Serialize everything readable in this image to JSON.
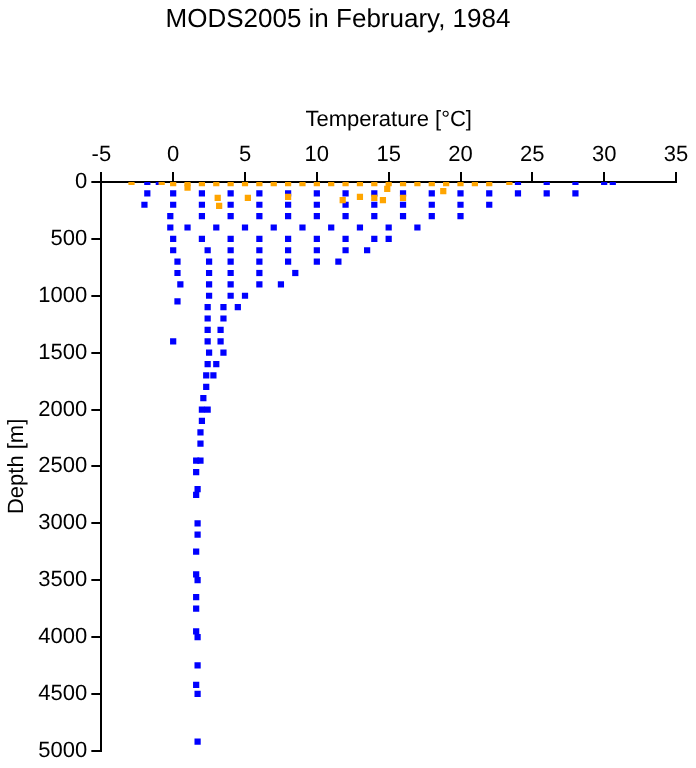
{
  "chart_data": {
    "type": "scatter",
    "title": "MODS2005 in February, 1984",
    "xlabel": "Temperature [°C]",
    "ylabel": "Depth [m]",
    "xlim": [
      -5,
      35
    ],
    "xticks": [
      -5,
      0,
      5,
      10,
      15,
      20,
      25,
      30,
      35
    ],
    "ylim": [
      5000,
      0
    ],
    "yticks": [
      0,
      500,
      1000,
      1500,
      2000,
      2500,
      3000,
      3500,
      4000,
      4500,
      5000
    ],
    "grid": false,
    "legend": false,
    "marker": "square",
    "series": [
      {
        "color": "#0000ff",
        "x": [
          -1.8,
          -1,
          24,
          26,
          28,
          30,
          30.6,
          -1.8,
          0,
          2,
          4,
          6,
          8,
          10,
          12,
          14,
          16,
          18,
          20,
          22,
          24,
          26,
          28,
          -2,
          0,
          2,
          4,
          6,
          8,
          10,
          12,
          14,
          16,
          18,
          20,
          22,
          -0.2,
          2,
          4,
          6,
          8,
          10,
          12,
          14,
          16,
          18,
          20,
          -0.2,
          1,
          3,
          5,
          7,
          9,
          11,
          13,
          15,
          17,
          0,
          2,
          4,
          6,
          8,
          10,
          12,
          14,
          15,
          0,
          2.4,
          4,
          6,
          8,
          10,
          12,
          13.5,
          0.3,
          2.5,
          4,
          6,
          8,
          10,
          11.5,
          0.3,
          2.5,
          4,
          6,
          8.5,
          0.5,
          2.5,
          4,
          6,
          7.5,
          2.5,
          4,
          5,
          0.3,
          2.4,
          3.5,
          4.5,
          2.4,
          3.5,
          2.4,
          3.3,
          0,
          2.4,
          3.3,
          2.5,
          3.5,
          2.4,
          3,
          2.3,
          2.8,
          2.3,
          2.1,
          2,
          2.4,
          2,
          1.9,
          1.9,
          1.6,
          1.9,
          1.6,
          1.7,
          1.6,
          1.7,
          1.7,
          1.6,
          1.6,
          1.7,
          1.6,
          1.6,
          1.6,
          1.7,
          1.7,
          1.6,
          1.7,
          1.7
        ],
        "values": [
          0,
          0,
          0,
          0,
          0,
          0,
          0,
          100,
          100,
          100,
          100,
          100,
          100,
          100,
          100,
          100,
          100,
          100,
          100,
          100,
          100,
          100,
          100,
          200,
          200,
          200,
          200,
          200,
          200,
          200,
          200,
          200,
          200,
          200,
          200,
          200,
          300,
          300,
          300,
          300,
          300,
          300,
          300,
          300,
          300,
          300,
          300,
          400,
          400,
          400,
          400,
          400,
          400,
          400,
          400,
          400,
          400,
          500,
          500,
          500,
          500,
          500,
          500,
          500,
          500,
          500,
          600,
          600,
          600,
          600,
          600,
          600,
          600,
          600,
          700,
          700,
          700,
          700,
          700,
          700,
          700,
          800,
          800,
          800,
          800,
          800,
          900,
          900,
          900,
          900,
          900,
          1000,
          1000,
          1000,
          1050,
          1100,
          1100,
          1100,
          1200,
          1200,
          1300,
          1300,
          1400,
          1400,
          1400,
          1500,
          1500,
          1600,
          1600,
          1700,
          1700,
          1800,
          1900,
          2000,
          2000,
          2100,
          2200,
          2300,
          2450,
          2450,
          2550,
          2700,
          2750,
          3000,
          3100,
          3250,
          3450,
          3500,
          3650,
          3750,
          3950,
          4000,
          4250,
          4420,
          4500,
          4920
        ]
      },
      {
        "color": "#ffa500",
        "x": [
          -2.9,
          -0.8,
          0,
          1,
          2,
          3,
          4,
          5,
          6,
          7,
          8,
          9,
          10,
          11,
          12,
          13,
          14,
          15,
          16,
          17,
          18,
          19,
          20,
          21,
          22,
          23.4,
          1,
          3.1,
          3.2,
          5.2,
          8,
          11.8,
          13,
          14,
          14.6,
          14.9,
          16,
          18.8
        ],
        "values": [
          0,
          0,
          10,
          10,
          10,
          10,
          10,
          10,
          10,
          10,
          10,
          10,
          10,
          10,
          10,
          10,
          10,
          10,
          10,
          10,
          10,
          10,
          10,
          10,
          10,
          0,
          50,
          140,
          210,
          140,
          130,
          160,
          130,
          140,
          160,
          60,
          140,
          80
        ]
      }
    ]
  }
}
